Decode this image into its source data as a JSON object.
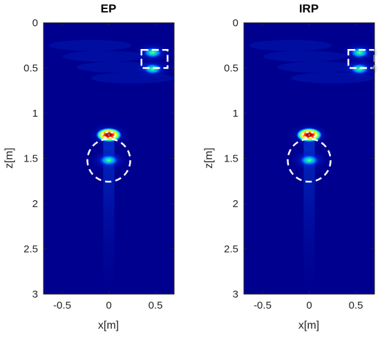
{
  "chart_data": [
    {
      "type": "heatmap",
      "title": "EP",
      "xlabel": "x[m]",
      "ylabel": "z[m]",
      "xlim": [
        -0.7,
        0.7
      ],
      "ylim": [
        0,
        3
      ],
      "y_reversed": true,
      "xticks": [
        -0.5,
        0,
        0.5
      ],
      "xtick_labels": [
        "-0.5",
        "0",
        "0.5"
      ],
      "yticks": [
        0,
        0.5,
        1,
        1.5,
        2,
        2.5,
        3
      ],
      "ytick_labels": [
        "0",
        "0.5",
        "1",
        "1.5",
        "2",
        "2.5",
        "3"
      ],
      "colormap": "jet",
      "hotspots": [
        {
          "x": 0.0,
          "z": 1.24,
          "intensity": 1.0,
          "note": "strongest response"
        },
        {
          "x": 0.0,
          "z": 1.52,
          "intensity": 0.42
        },
        {
          "x": 0.47,
          "z": 0.33,
          "intensity": 0.38
        },
        {
          "x": 0.47,
          "z": 0.51,
          "intensity": 0.36
        }
      ],
      "annotations": [
        {
          "shape": "dashed-circle",
          "x": 0.0,
          "z": 1.52,
          "radius_m": 0.23,
          "color": "#ffffff"
        },
        {
          "shape": "dashed-rectangle",
          "x0": 0.35,
          "x1": 0.63,
          "z0": 0.3,
          "z1": 0.5,
          "color": "#ffffff"
        },
        {
          "shape": "dashed-ellipse",
          "x": 0.0,
          "z": 1.24,
          "rx_m": 0.07,
          "rz_m": 0.03,
          "color": "#ffffff"
        }
      ]
    },
    {
      "type": "heatmap",
      "title": "IRP",
      "xlabel": "x[m]",
      "ylabel": "z[m]",
      "xlim": [
        -0.7,
        0.7
      ],
      "ylim": [
        0,
        3
      ],
      "y_reversed": true,
      "xticks": [
        -0.5,
        0,
        0.5
      ],
      "xtick_labels": [
        "-0.5",
        "0",
        "0.5"
      ],
      "yticks": [
        0,
        0.5,
        1,
        1.5,
        2,
        2.5,
        3
      ],
      "ytick_labels": [
        "0",
        "0.5",
        "1",
        "1.5",
        "2",
        "2.5",
        "3"
      ],
      "colormap": "jet",
      "hotspots": [
        {
          "x": 0.0,
          "z": 1.24,
          "intensity": 1.0,
          "note": "strongest response"
        },
        {
          "x": 0.0,
          "z": 1.52,
          "intensity": 0.42
        },
        {
          "x": 0.54,
          "z": 0.33,
          "intensity": 0.36
        },
        {
          "x": 0.54,
          "z": 0.51,
          "intensity": 0.36
        }
      ],
      "annotations": [
        {
          "shape": "dashed-circle",
          "x": 0.0,
          "z": 1.52,
          "radius_m": 0.23,
          "color": "#ffffff"
        },
        {
          "shape": "dashed-rectangle",
          "x0": 0.42,
          "x1": 0.7,
          "z0": 0.3,
          "z1": 0.5,
          "color": "#ffffff"
        },
        {
          "shape": "dashed-ellipse",
          "x": 0.0,
          "z": 1.24,
          "rx_m": 0.07,
          "rz_m": 0.03,
          "color": "#ffffff"
        }
      ]
    }
  ],
  "colors": {
    "background": "#00008f",
    "annotation": "#ffffff",
    "axis": "#262626"
  }
}
